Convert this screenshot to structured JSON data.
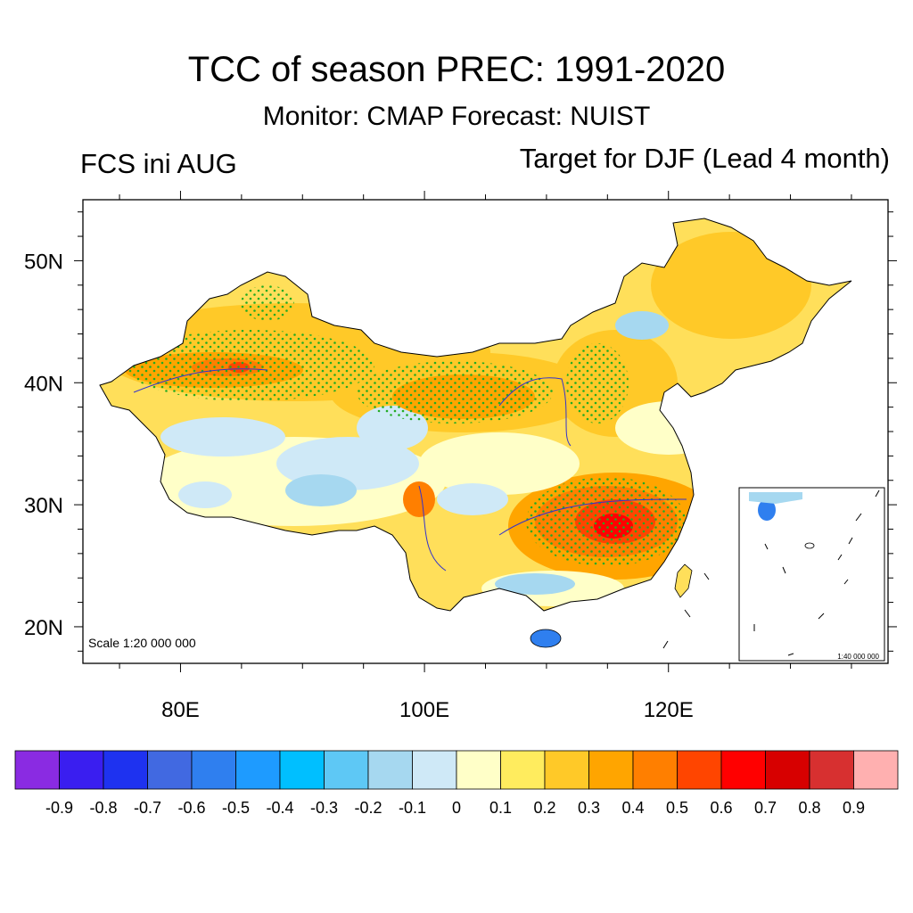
{
  "title": "TCC of season PREC: 1991-2020",
  "subtitle": "Monitor: CMAP   Forecast: NUIST",
  "left_label": "FCS ini AUG",
  "right_label": "Target for DJF (Lead 4 month)",
  "scale_main": "Scale 1:20 000 000",
  "scale_inset": "1:40 000 000",
  "map": {
    "lon_range": [
      72,
      138
    ],
    "lat_range": [
      17,
      55
    ],
    "lon_ticks": [
      80,
      100,
      120
    ],
    "lon_tick_labels": [
      "80E",
      "100E",
      "120E"
    ],
    "lat_ticks": [
      20,
      30,
      40,
      50
    ],
    "lat_tick_labels": [
      "20N",
      "30N",
      "40N",
      "50N"
    ],
    "stipple_color": "#22aa22",
    "border_color": "#000000",
    "river_color": "#3333cc"
  },
  "colorbar": {
    "labels": [
      "-0.9",
      "-0.8",
      "-0.7",
      "-0.6",
      "-0.5",
      "-0.4",
      "-0.3",
      "-0.2",
      "-0.1",
      "0",
      "0.1",
      "0.2",
      "0.3",
      "0.4",
      "0.5",
      "0.6",
      "0.7",
      "0.8",
      "0.9"
    ],
    "colors": [
      "#8a2be2",
      "#3a1ef0",
      "#1e32f0",
      "#4169e1",
      "#2f7fef",
      "#1e9bff",
      "#00bfff",
      "#5ec8f5",
      "#a6d8f0",
      "#cfe9f7",
      "#ffffc8",
      "#ffec5e",
      "#ffc928",
      "#ffa500",
      "#ff7f00",
      "#ff4500",
      "#ff0000",
      "#d70000",
      "#d73030",
      "#ffb0b0"
    ]
  }
}
